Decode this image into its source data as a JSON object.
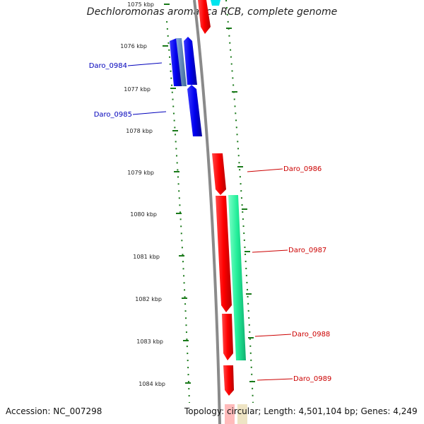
{
  "title": "Dechloromonas aromatica RCB, complete genome",
  "accession": "Accession: NC_007298",
  "topology": "Topology: circular; Length: 4,501,104 bp; Genes: 4,249",
  "colors": {
    "backbone": "#888888",
    "tick": "#1a7a1a",
    "tick_label": "#222222",
    "forward_gene": "#ff0000",
    "reverse_gene": "#0000ee",
    "blue_label": "#0000bb",
    "red_label": "#cc0000",
    "rna_gene": "#22ee99",
    "steel_gene": "#5588bb",
    "cyan_gene": "#00e5ee"
  },
  "scale_labels": [
    "1075 kbp",
    "1076 kbp",
    "1077 kbp",
    "1078 kbp",
    "1079 kbp",
    "1080 kbp",
    "1081 kbp",
    "1082 kbp",
    "1083 kbp",
    "1084 kbp"
  ],
  "gene_labels": [
    "Daro_0984",
    "Daro_0985",
    "Daro_0986",
    "Daro_0987",
    "Daro_0988",
    "Daro_0989"
  ]
}
